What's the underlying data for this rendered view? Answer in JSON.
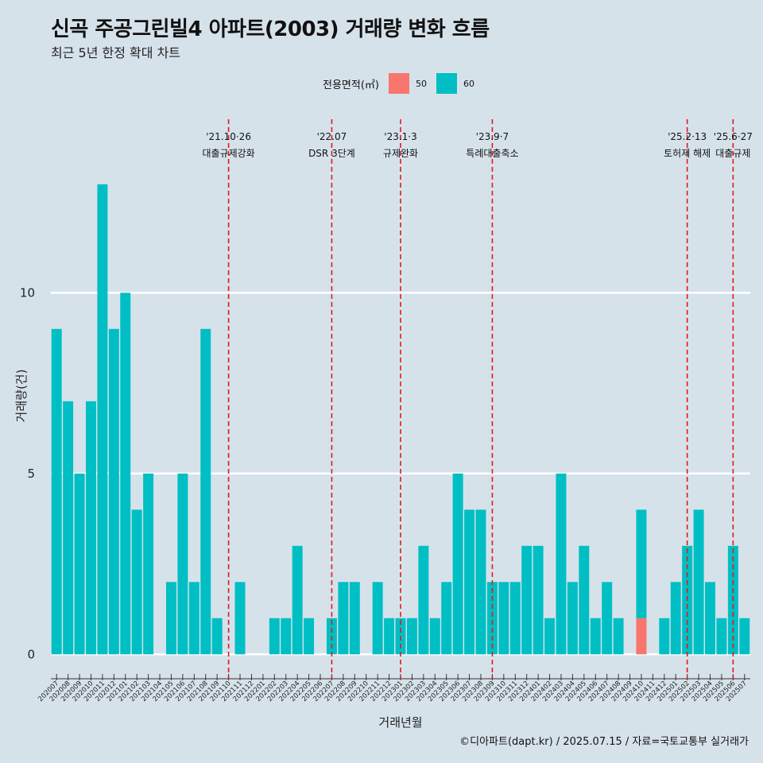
{
  "header": {
    "title": "신곡 주공그린빌4 아파트(2003) 거래량 변화 흐름",
    "subtitle": "최근 5년 한정 확대 차트"
  },
  "legend": {
    "title": "전용면적(㎡)",
    "items": [
      {
        "label": "50",
        "color": "#f8766d"
      },
      {
        "label": "60",
        "color": "#00bfc4"
      }
    ]
  },
  "caption": "©디아파트(dapt.kr) / 2025.07.15 / 자료=국토교통부 실거래가",
  "chart_data": {
    "type": "bar",
    "title": "신곡 주공그린빌4 아파트(2003) 거래량 변화 흐름",
    "xlabel": "거래년월",
    "ylabel": "거래량(건)",
    "ylim": [
      -0.5,
      14.8
    ],
    "yticks": [
      0,
      5,
      10
    ],
    "grid": true,
    "legend_position": "top",
    "categories": [
      "202007",
      "202008",
      "202009",
      "202010",
      "202011",
      "202012",
      "202101",
      "202102",
      "202103",
      "202104",
      "202105",
      "202106",
      "202107",
      "202108",
      "202109",
      "202110",
      "202111",
      "202112",
      "202201",
      "202202",
      "202203",
      "202204",
      "202205",
      "202206",
      "202207",
      "202208",
      "202209",
      "202210",
      "202211",
      "202212",
      "202301",
      "202302",
      "202303",
      "202304",
      "202305",
      "202306",
      "202307",
      "202308",
      "202309",
      "202310",
      "202311",
      "202312",
      "202401",
      "202402",
      "202403",
      "202404",
      "202405",
      "202406",
      "202407",
      "202408",
      "202409",
      "202410",
      "202411",
      "202412",
      "202501",
      "202502",
      "202503",
      "202504",
      "202505",
      "202506",
      "202507"
    ],
    "series": [
      {
        "name": "50",
        "color": "#f8766d",
        "values": [
          0,
          0,
          0,
          0,
          0,
          0,
          0,
          0,
          0,
          0,
          0,
          0,
          0,
          0,
          0,
          0,
          0,
          0,
          0,
          0,
          0,
          0,
          0,
          0,
          0,
          0,
          0,
          0,
          0,
          0,
          0,
          0,
          0,
          0,
          0,
          0,
          0,
          0,
          0,
          0,
          0,
          0,
          0,
          0,
          0,
          0,
          0,
          0,
          0,
          0,
          0,
          1,
          0,
          0,
          0,
          0,
          0,
          0,
          0,
          0,
          0
        ]
      },
      {
        "name": "60",
        "color": "#00bfc4",
        "values": [
          9,
          7,
          5,
          7,
          13,
          9,
          10,
          4,
          5,
          0,
          2,
          5,
          2,
          9,
          1,
          0,
          2,
          0,
          0,
          1,
          1,
          3,
          1,
          0,
          1,
          2,
          2,
          0,
          2,
          1,
          1,
          1,
          3,
          1,
          2,
          5,
          4,
          4,
          2,
          2,
          2,
          3,
          3,
          1,
          5,
          2,
          3,
          1,
          2,
          1,
          0,
          3,
          0,
          1,
          2,
          3,
          4,
          2,
          1,
          3,
          1
        ]
      }
    ],
    "events": [
      {
        "category": "202110",
        "date": "'21.10·26",
        "label": "대출규제강화"
      },
      {
        "category": "202207",
        "date": "'22.07",
        "label": "DSR 3단계"
      },
      {
        "category": "202301",
        "date": "'23.1·3",
        "label": "규제완화"
      },
      {
        "category": "202309",
        "date": "'23.9·7",
        "label": "특례대출축소"
      },
      {
        "category": "202502",
        "date": "'25.2·13",
        "label": "토허제 해제"
      },
      {
        "category": "202506",
        "date": "'25.6·27",
        "label": "대출규제"
      }
    ]
  }
}
